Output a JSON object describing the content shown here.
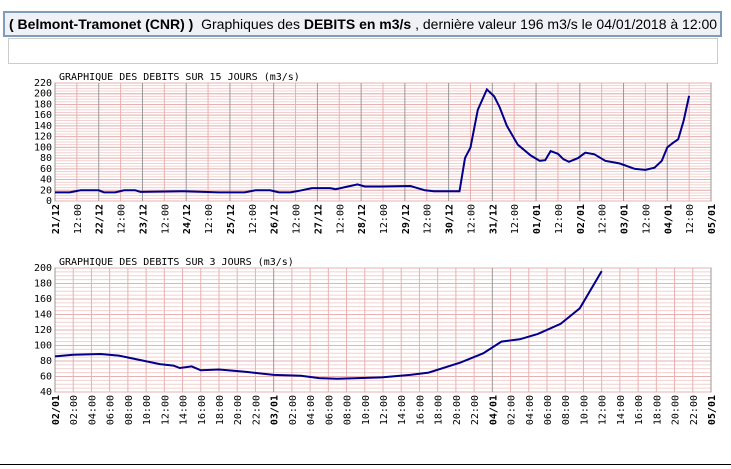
{
  "header": {
    "station": "( Belmont-Tramonet (CNR) )",
    "text1": "Graphiques des",
    "bold": "DEBITS en m3/s",
    "text2": ", dernière valeur 196 m3/s le 04/01/2018 à 12:00"
  },
  "chart_data": [
    {
      "type": "line",
      "title": "GRAPHIQUE DES DEBITS SUR 15 JOURS (m3/s)",
      "color": "#00008b",
      "grid": true,
      "xlim": [
        0,
        360
      ],
      "ylim": [
        0,
        220
      ],
      "yticks": [
        0,
        20,
        40,
        60,
        80,
        100,
        120,
        140,
        160,
        180,
        200,
        220
      ],
      "xticks": [
        {
          "value": 0,
          "label": "21/12"
        },
        {
          "value": 12,
          "label": "12:00"
        },
        {
          "value": 24,
          "label": "22/12"
        },
        {
          "value": 36,
          "label": "12:00"
        },
        {
          "value": 48,
          "label": "23/12"
        },
        {
          "value": 60,
          "label": "12:00"
        },
        {
          "value": 72,
          "label": "24/12"
        },
        {
          "value": 84,
          "label": "12:00"
        },
        {
          "value": 96,
          "label": "25/12"
        },
        {
          "value": 108,
          "label": "12:00"
        },
        {
          "value": 120,
          "label": "26/12"
        },
        {
          "value": 132,
          "label": "12:00"
        },
        {
          "value": 144,
          "label": "27/12"
        },
        {
          "value": 156,
          "label": "12:00"
        },
        {
          "value": 168,
          "label": "28/12"
        },
        {
          "value": 180,
          "label": "12:00"
        },
        {
          "value": 192,
          "label": "29/12"
        },
        {
          "value": 204,
          "label": "12:00"
        },
        {
          "value": 216,
          "label": "30/12"
        },
        {
          "value": 228,
          "label": "12:00"
        },
        {
          "value": 240,
          "label": "31/12"
        },
        {
          "value": 252,
          "label": "12:00"
        },
        {
          "value": 264,
          "label": "01/01"
        },
        {
          "value": 276,
          "label": "12:00"
        },
        {
          "value": 288,
          "label": "02/01"
        },
        {
          "value": 300,
          "label": "12:00"
        },
        {
          "value": 312,
          "label": "03/01"
        },
        {
          "value": 324,
          "label": "12:00"
        },
        {
          "value": 336,
          "label": "04/01"
        },
        {
          "value": 348,
          "label": "12:00"
        },
        {
          "value": 360,
          "label": "05/01"
        }
      ],
      "x": [
        0,
        8,
        14,
        24,
        27,
        33,
        38,
        44,
        47,
        69,
        71,
        90,
        104,
        110,
        118,
        123,
        129,
        134,
        141,
        151,
        154,
        162,
        166,
        170,
        178,
        195,
        197,
        203,
        208,
        222,
        225,
        228,
        232,
        237,
        241,
        244,
        248,
        254,
        261,
        266,
        269,
        272,
        276,
        279,
        282,
        287,
        291,
        296,
        302,
        310,
        318,
        324,
        329,
        333,
        336,
        339,
        342,
        345,
        348
      ],
      "values": [
        16,
        16,
        20,
        20,
        16,
        16,
        20,
        20,
        17,
        18,
        18,
        16,
        16,
        20,
        20,
        16,
        16,
        19,
        24,
        24,
        22,
        28,
        31,
        27,
        27,
        28,
        26,
        20,
        18,
        18,
        80,
        100,
        170,
        208,
        195,
        175,
        140,
        105,
        85,
        75,
        76,
        93,
        88,
        78,
        73,
        80,
        90,
        87,
        75,
        70,
        60,
        58,
        62,
        75,
        100,
        108,
        115,
        150,
        196
      ]
    },
    {
      "type": "line",
      "title": "GRAPHIQUE DES DEBITS SUR 3 JOURS (m3/s)",
      "color": "#00008b",
      "grid": true,
      "xlim": [
        0,
        72
      ],
      "ylim": [
        40,
        200
      ],
      "yticks": [
        40,
        60,
        80,
        100,
        120,
        140,
        160,
        180,
        200
      ],
      "xticks": [
        {
          "value": 0,
          "label": "02/01"
        },
        {
          "value": 2,
          "label": "02:00"
        },
        {
          "value": 4,
          "label": "04:00"
        },
        {
          "value": 6,
          "label": "06:00"
        },
        {
          "value": 8,
          "label": "08:00"
        },
        {
          "value": 10,
          "label": "10:00"
        },
        {
          "value": 12,
          "label": "12:00"
        },
        {
          "value": 14,
          "label": "14:00"
        },
        {
          "value": 16,
          "label": "16:00"
        },
        {
          "value": 18,
          "label": "18:00"
        },
        {
          "value": 20,
          "label": "20:00"
        },
        {
          "value": 22,
          "label": "22:00"
        },
        {
          "value": 24,
          "label": "03/01"
        },
        {
          "value": 26,
          "label": "02:00"
        },
        {
          "value": 28,
          "label": "04:00"
        },
        {
          "value": 30,
          "label": "06:00"
        },
        {
          "value": 32,
          "label": "08:00"
        },
        {
          "value": 34,
          "label": "10:00"
        },
        {
          "value": 36,
          "label": "12:00"
        },
        {
          "value": 38,
          "label": "14:00"
        },
        {
          "value": 40,
          "label": "16:00"
        },
        {
          "value": 42,
          "label": "18:00"
        },
        {
          "value": 44,
          "label": "20:00"
        },
        {
          "value": 46,
          "label": "22:00"
        },
        {
          "value": 48,
          "label": "04/01"
        },
        {
          "value": 50,
          "label": "02:00"
        },
        {
          "value": 52,
          "label": "04:00"
        },
        {
          "value": 54,
          "label": "06:00"
        },
        {
          "value": 56,
          "label": "08:00"
        },
        {
          "value": 58,
          "label": "10:00"
        },
        {
          "value": 60,
          "label": "12:00"
        },
        {
          "value": 62,
          "label": "14:00"
        },
        {
          "value": 64,
          "label": "16:00"
        },
        {
          "value": 66,
          "label": "18:00"
        },
        {
          "value": 68,
          "label": "20:00"
        },
        {
          "value": 70,
          "label": "22:00"
        },
        {
          "value": 72,
          "label": "05/01"
        }
      ],
      "x": [
        0,
        2,
        5,
        7,
        9,
        11.5,
        13,
        13.7,
        15,
        16,
        18,
        21,
        24,
        27,
        29,
        31,
        36,
        39,
        41,
        44.5,
        47,
        49,
        51,
        53,
        55.5,
        57.6,
        60
      ],
      "values": [
        86,
        88,
        89,
        87,
        82,
        76,
        74,
        71,
        73,
        68,
        69,
        66,
        62,
        61,
        58,
        57,
        59,
        62,
        65,
        78,
        90,
        105,
        108,
        115,
        128,
        148,
        196
      ]
    }
  ]
}
